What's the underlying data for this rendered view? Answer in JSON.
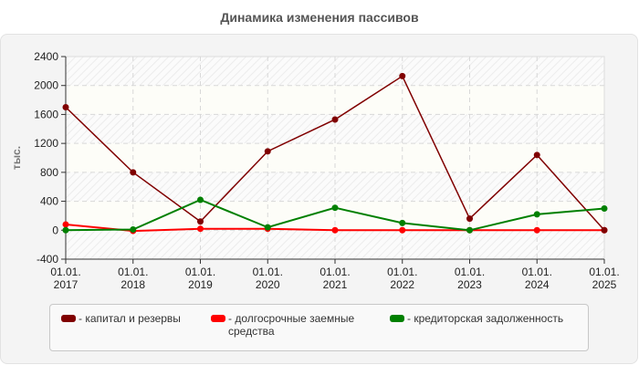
{
  "chart_data": {
    "type": "line",
    "title": "Динамика изменения пассивов",
    "xlabel": "",
    "ylabel": "тыс.",
    "ylim": [
      -400,
      2400
    ],
    "yticks": [
      2400,
      2000,
      1600,
      1200,
      800,
      400,
      0,
      -400
    ],
    "grid": true,
    "legend_position": "bottom",
    "categories": [
      "01.01.\n2017",
      "01.01.\n2018",
      "01.01.\n2019",
      "01.01.\n2020",
      "01.01.\n2021",
      "01.01.\n2022",
      "01.01.\n2023",
      "01.01.\n2024",
      "01.01.\n2025"
    ],
    "x_labels_line1": [
      "01.01.",
      "01.01.",
      "01.01.",
      "01.01.",
      "01.01.",
      "01.01.",
      "01.01.",
      "01.01.",
      "01.01."
    ],
    "x_labels_line2": [
      "2017",
      "2018",
      "2019",
      "2020",
      "2021",
      "2022",
      "2023",
      "2024",
      "2025"
    ],
    "series": [
      {
        "name": "капитал и резервы",
        "color": "#800000",
        "values": [
          1700,
          800,
          120,
          1090,
          1530,
          2130,
          160,
          1040,
          0
        ]
      },
      {
        "name": "долгосрочные заемные средства",
        "color": "#ff0000",
        "values": [
          80,
          -10,
          20,
          20,
          0,
          0,
          0,
          0,
          0
        ]
      },
      {
        "name": "кредиторская задолженность",
        "color": "#008000",
        "values": [
          0,
          10,
          420,
          40,
          310,
          100,
          0,
          220,
          300
        ]
      }
    ]
  },
  "legend": {
    "items": [
      {
        "label": "- капитал и резервы",
        "color": "#800000"
      },
      {
        "label": "- долгосрочные заемные средства",
        "color": "#ff0000"
      },
      {
        "label": "- кредиторская задолженность",
        "color": "#008000"
      }
    ]
  }
}
